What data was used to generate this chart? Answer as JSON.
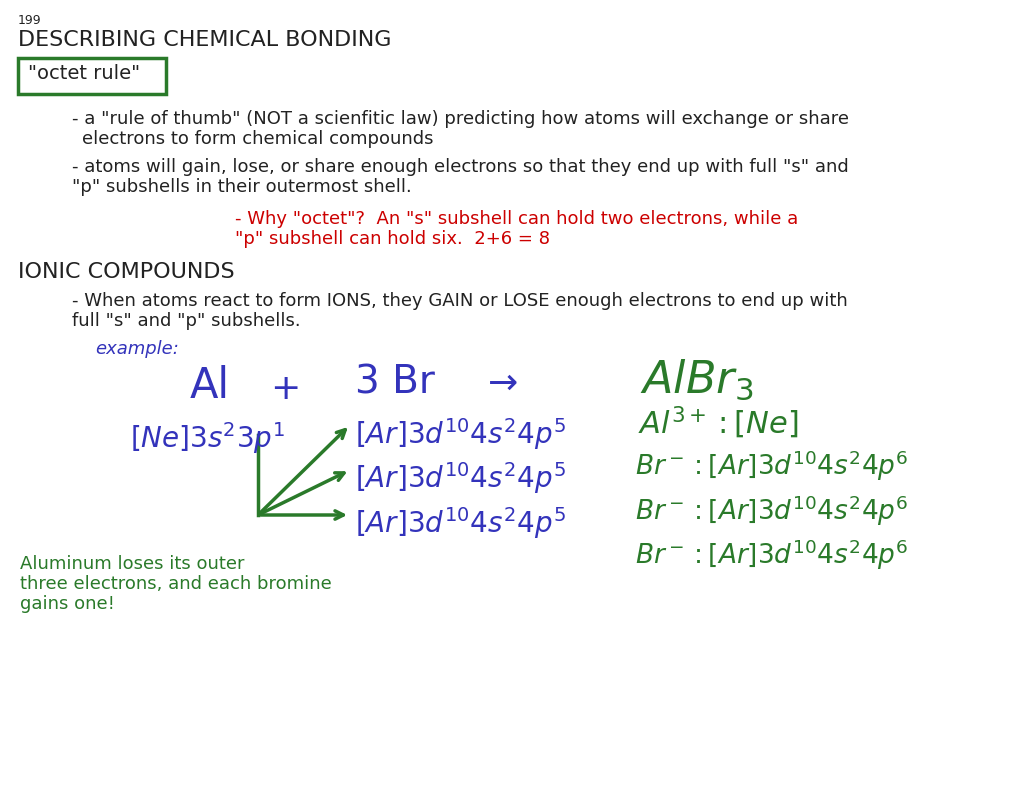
{
  "page_num": "199",
  "title": "DESCRIBING CHEMICAL BONDING",
  "octet_rule_label": "\"octet rule\"",
  "octet_box_color": "#2d7a2d",
  "bullet1_line1": "- a \"rule of thumb\" (NOT a scienfitic law) predicting how atoms will exchange or share",
  "bullet1_line2": "electrons to form chemical compounds",
  "bullet2_line1": "- atoms will gain, lose, or share enough electrons so that they end up with full \"s\" and",
  "bullet2_line2": "\"p\" subshells in their outermost shell.",
  "red_line1": "- Why \"octet\"?  An \"s\" subshell can hold two electrons, while a",
  "red_line2": "\"p\" subshell can hold six.  2+6 = 8",
  "ionic_header": "IONIC COMPOUNDS",
  "ionic_bullet1": "- When atoms react to form IONS, they GAIN or LOSE enough electrons to end up with",
  "ionic_bullet2": "full \"s\" and \"p\" subshells.",
  "example_label": "example:",
  "bg_color": "#ffffff",
  "black": "#222222",
  "red": "#cc0000",
  "blue": "#3333bb",
  "green": "#2a7a2a",
  "font_small": 9,
  "font_main": 13,
  "font_title": 16
}
